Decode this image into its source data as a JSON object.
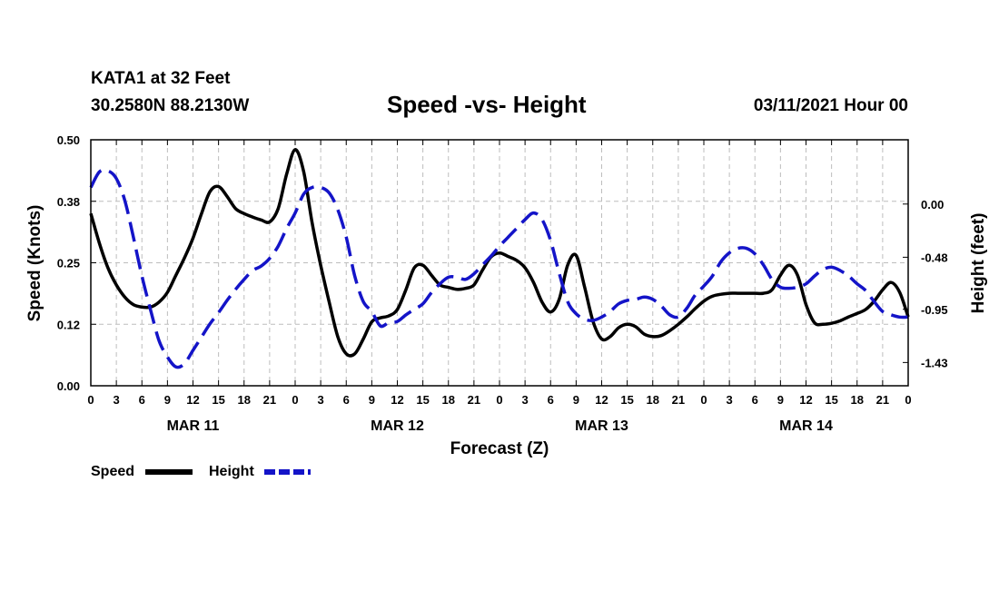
{
  "header": {
    "station": "KATA1 at 32 Feet",
    "coords": "30.2580N 88.2130W",
    "title": "Speed -vs- Height",
    "datestamp": "03/11/2021 Hour 00"
  },
  "colors": {
    "speed": "#000000",
    "height": "#1414c8",
    "grid": "#bdbdbd"
  },
  "chart_data": {
    "type": "line",
    "title": "Speed -vs- Height",
    "xlabel": "Forecast (Z)",
    "ylabel_left": "Speed (Knots)",
    "ylabel_right": "Height (feet)",
    "x_unit": "hours from 03/11/2021 00Z",
    "xlim": [
      0,
      96
    ],
    "ylim_left": [
      0.0,
      0.5
    ],
    "ylim_right": [
      -1.64,
      0.58
    ],
    "left_ticks": [
      "0.50",
      "0.38",
      "0.25",
      "0.12",
      "0.00"
    ],
    "left_tick_values": [
      0.5,
      0.375,
      0.25,
      0.125,
      0.0
    ],
    "right_ticks": [
      "0.00",
      "-0.48",
      "-0.95",
      "-1.43"
    ],
    "right_tick_values": [
      0.0,
      -0.48,
      -0.95,
      -1.43
    ],
    "x_tick_labels": [
      "0",
      "3",
      "6",
      "9",
      "12",
      "15",
      "18",
      "21",
      "0",
      "3",
      "6",
      "9",
      "12",
      "15",
      "18",
      "21",
      "0",
      "3",
      "6",
      "9",
      "12",
      "15",
      "18",
      "21",
      "0",
      "3",
      "6",
      "9",
      "12",
      "15",
      "18",
      "21",
      "0"
    ],
    "x_tick_hours": [
      0,
      3,
      6,
      9,
      12,
      15,
      18,
      21,
      24,
      27,
      30,
      33,
      36,
      39,
      42,
      45,
      48,
      51,
      54,
      57,
      60,
      63,
      66,
      69,
      72,
      75,
      78,
      81,
      84,
      87,
      90,
      93,
      96
    ],
    "day_labels": [
      {
        "label": "MAR 11",
        "hour": 12
      },
      {
        "label": "MAR 12",
        "hour": 36
      },
      {
        "label": "MAR 13",
        "hour": 60
      },
      {
        "label": "MAR 14",
        "hour": 84
      }
    ],
    "grid": true,
    "legend": "bottom-left",
    "series": [
      {
        "name": "Speed",
        "axis": "left",
        "style": "solid",
        "points": [
          [
            0,
            0.35
          ],
          [
            1,
            0.29
          ],
          [
            2,
            0.24
          ],
          [
            3,
            0.205
          ],
          [
            4,
            0.18
          ],
          [
            5,
            0.165
          ],
          [
            6,
            0.16
          ],
          [
            7,
            0.16
          ],
          [
            8,
            0.17
          ],
          [
            9,
            0.19
          ],
          [
            10,
            0.225
          ],
          [
            11,
            0.26
          ],
          [
            12,
            0.3
          ],
          [
            13,
            0.35
          ],
          [
            14,
            0.395
          ],
          [
            15,
            0.405
          ],
          [
            16,
            0.385
          ],
          [
            17,
            0.36
          ],
          [
            18,
            0.35
          ],
          [
            19,
            0.343
          ],
          [
            20,
            0.337
          ],
          [
            21,
            0.333
          ],
          [
            22,
            0.36
          ],
          [
            23,
            0.43
          ],
          [
            24,
            0.48
          ],
          [
            25,
            0.435
          ],
          [
            26,
            0.33
          ],
          [
            27,
            0.245
          ],
          [
            28,
            0.17
          ],
          [
            29,
            0.1
          ],
          [
            30,
            0.065
          ],
          [
            31,
            0.065
          ],
          [
            32,
            0.095
          ],
          [
            33,
            0.13
          ],
          [
            34,
            0.138
          ],
          [
            35,
            0.142
          ],
          [
            36,
            0.155
          ],
          [
            37,
            0.195
          ],
          [
            38,
            0.24
          ],
          [
            39,
            0.245
          ],
          [
            40,
            0.225
          ],
          [
            41,
            0.205
          ],
          [
            42,
            0.2
          ],
          [
            43,
            0.196
          ],
          [
            44,
            0.198
          ],
          [
            45,
            0.205
          ],
          [
            46,
            0.235
          ],
          [
            47,
            0.262
          ],
          [
            48,
            0.27
          ],
          [
            49,
            0.263
          ],
          [
            50,
            0.255
          ],
          [
            51,
            0.24
          ],
          [
            52,
            0.21
          ],
          [
            53,
            0.17
          ],
          [
            54,
            0.15
          ],
          [
            55,
            0.175
          ],
          [
            56,
            0.245
          ],
          [
            57,
            0.265
          ],
          [
            58,
            0.2
          ],
          [
            59,
            0.13
          ],
          [
            60,
            0.095
          ],
          [
            61,
            0.1
          ],
          [
            62,
            0.118
          ],
          [
            63,
            0.125
          ],
          [
            64,
            0.12
          ],
          [
            65,
            0.105
          ],
          [
            66,
            0.1
          ],
          [
            67,
            0.102
          ],
          [
            68,
            0.112
          ],
          [
            69,
            0.125
          ],
          [
            70,
            0.14
          ],
          [
            71,
            0.157
          ],
          [
            72,
            0.172
          ],
          [
            73,
            0.182
          ],
          [
            74,
            0.186
          ],
          [
            75,
            0.188
          ],
          [
            76,
            0.188
          ],
          [
            77,
            0.188
          ],
          [
            78,
            0.188
          ],
          [
            79,
            0.188
          ],
          [
            80,
            0.195
          ],
          [
            81,
            0.225
          ],
          [
            82,
            0.245
          ],
          [
            83,
            0.225
          ],
          [
            84,
            0.165
          ],
          [
            85,
            0.128
          ],
          [
            86,
            0.125
          ],
          [
            87,
            0.127
          ],
          [
            88,
            0.132
          ],
          [
            89,
            0.14
          ],
          [
            90,
            0.147
          ],
          [
            91,
            0.155
          ],
          [
            92,
            0.172
          ],
          [
            93,
            0.195
          ],
          [
            94,
            0.21
          ],
          [
            95,
            0.19
          ],
          [
            96,
            0.14
          ]
        ]
      },
      {
        "name": "Height",
        "axis": "right",
        "style": "dashed",
        "points": [
          [
            0,
            0.15
          ],
          [
            1,
            0.29
          ],
          [
            2,
            0.3
          ],
          [
            3,
            0.23
          ],
          [
            4,
            0.03
          ],
          [
            5,
            -0.3
          ],
          [
            6,
            -0.65
          ],
          [
            7,
            -0.95
          ],
          [
            8,
            -1.23
          ],
          [
            9,
            -1.38
          ],
          [
            10,
            -1.47
          ],
          [
            11,
            -1.44
          ],
          [
            12,
            -1.32
          ],
          [
            13,
            -1.2
          ],
          [
            14,
            -1.08
          ],
          [
            15,
            -0.98
          ],
          [
            16,
            -0.87
          ],
          [
            17,
            -0.77
          ],
          [
            18,
            -0.68
          ],
          [
            19,
            -0.6
          ],
          [
            20,
            -0.56
          ],
          [
            21,
            -0.49
          ],
          [
            22,
            -0.38
          ],
          [
            23,
            -0.22
          ],
          [
            24,
            -0.08
          ],
          [
            25,
            0.09
          ],
          [
            26,
            0.15
          ],
          [
            27,
            0.15
          ],
          [
            28,
            0.1
          ],
          [
            29,
            -0.05
          ],
          [
            30,
            -0.3
          ],
          [
            31,
            -0.65
          ],
          [
            32,
            -0.88
          ],
          [
            33,
            -0.97
          ],
          [
            34,
            -1.1
          ],
          [
            35,
            -1.07
          ],
          [
            36,
            -1.06
          ],
          [
            37,
            -1.0
          ],
          [
            38,
            -0.95
          ],
          [
            39,
            -0.9
          ],
          [
            40,
            -0.8
          ],
          [
            41,
            -0.72
          ],
          [
            42,
            -0.66
          ],
          [
            43,
            -0.66
          ],
          [
            44,
            -0.68
          ],
          [
            45,
            -0.63
          ],
          [
            46,
            -0.55
          ],
          [
            47,
            -0.47
          ],
          [
            48,
            -0.38
          ],
          [
            49,
            -0.3
          ],
          [
            50,
            -0.22
          ],
          [
            51,
            -0.14
          ],
          [
            52,
            -0.08
          ],
          [
            53,
            -0.14
          ],
          [
            54,
            -0.33
          ],
          [
            55,
            -0.62
          ],
          [
            56,
            -0.88
          ],
          [
            57,
            -0.99
          ],
          [
            58,
            -1.04
          ],
          [
            59,
            -1.05
          ],
          [
            60,
            -1.02
          ],
          [
            61,
            -0.97
          ],
          [
            62,
            -0.9
          ],
          [
            63,
            -0.87
          ],
          [
            64,
            -0.86
          ],
          [
            65,
            -0.84
          ],
          [
            66,
            -0.86
          ],
          [
            67,
            -0.92
          ],
          [
            68,
            -1.0
          ],
          [
            69,
            -1.02
          ],
          [
            70,
            -0.94
          ],
          [
            71,
            -0.82
          ],
          [
            72,
            -0.74
          ],
          [
            73,
            -0.65
          ],
          [
            74,
            -0.52
          ],
          [
            75,
            -0.44
          ],
          [
            76,
            -0.4
          ],
          [
            77,
            -0.4
          ],
          [
            78,
            -0.45
          ],
          [
            79,
            -0.55
          ],
          [
            80,
            -0.68
          ],
          [
            81,
            -0.75
          ],
          [
            82,
            -0.76
          ],
          [
            83,
            -0.75
          ],
          [
            84,
            -0.72
          ],
          [
            85,
            -0.65
          ],
          [
            86,
            -0.59
          ],
          [
            87,
            -0.57
          ],
          [
            88,
            -0.6
          ],
          [
            89,
            -0.65
          ],
          [
            90,
            -0.72
          ],
          [
            91,
            -0.78
          ],
          [
            92,
            -0.88
          ],
          [
            93,
            -0.97
          ],
          [
            94,
            -1.0
          ],
          [
            95,
            -1.02
          ],
          [
            96,
            -1.02
          ]
        ]
      }
    ]
  },
  "legend": {
    "speed_label": "Speed",
    "height_label": "Height"
  }
}
